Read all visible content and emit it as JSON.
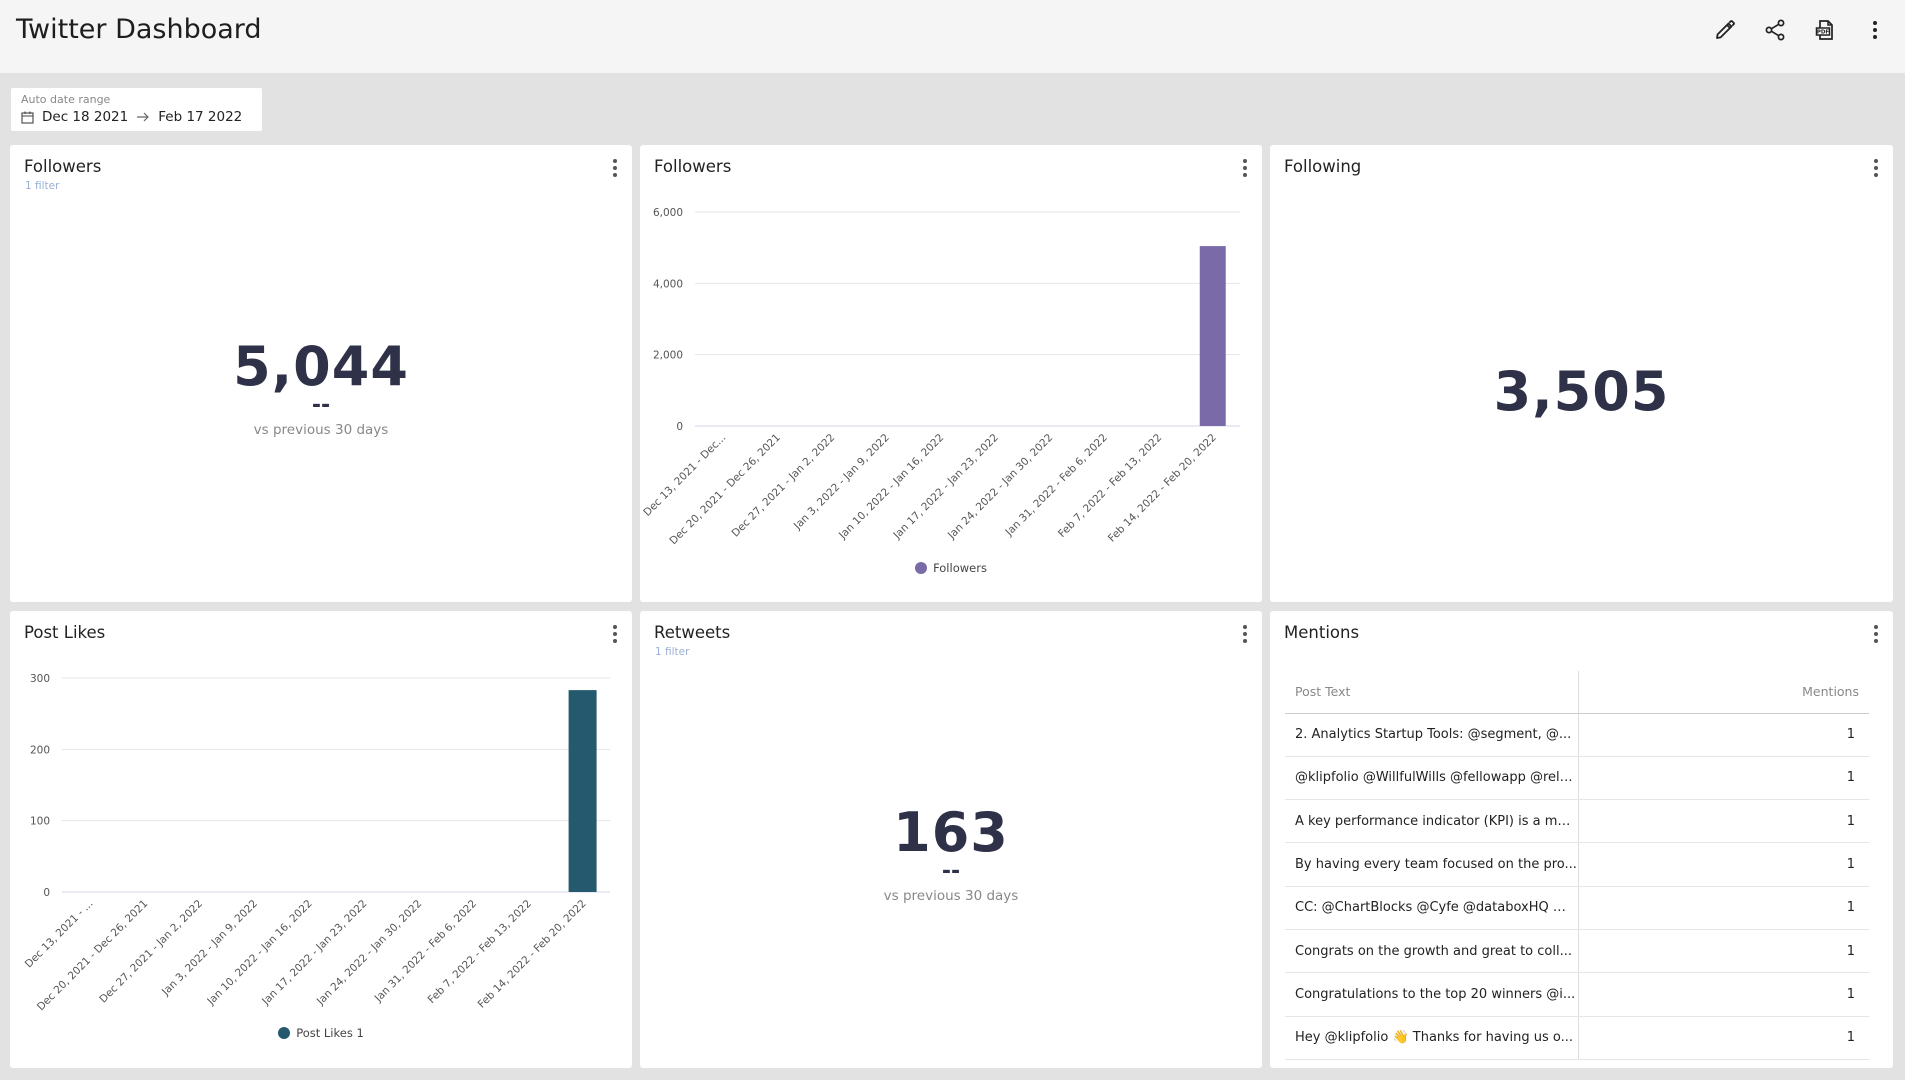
{
  "header": {
    "title": "Twitter Dashboard",
    "actions": [
      {
        "name": "edit-icon"
      },
      {
        "name": "share-icon"
      },
      {
        "name": "pdf-export-icon"
      },
      {
        "name": "more-vertical-icon"
      }
    ]
  },
  "date_range": {
    "label": "Auto date range",
    "start": "Dec 18 2021",
    "end": "Feb 17 2022"
  },
  "cards": {
    "followers_metric": {
      "title": "Followers",
      "filter": "1 filter",
      "value": "5,044",
      "delta": "--",
      "comparison": "vs previous 30 days"
    },
    "followers_chart": {
      "title": "Followers"
    },
    "following_metric": {
      "title": "Following",
      "value": "3,505"
    },
    "post_likes_chart": {
      "title": "Post Likes"
    },
    "retweets_metric": {
      "title": "Retweets",
      "filter": "1 filter",
      "value": "163",
      "delta": "--",
      "comparison": "vs previous 30 days"
    },
    "mentions_table": {
      "title": "Mentions",
      "columns": [
        "Post Text",
        "Mentions"
      ],
      "rows": [
        {
          "text": "2. Analytics Startup Tools: @segment, @...",
          "count": "1"
        },
        {
          "text": "@klipfolio @WillfulWills @fellowapp @relo...",
          "count": "1"
        },
        {
          "text": "A key performance indicator (KPI) is a me...",
          "count": "1"
        },
        {
          "text": "By having every team focused on the pro...",
          "count": "1"
        },
        {
          "text": "CC: @ChartBlocks @Cyfe @databoxHQ @...",
          "count": "1"
        },
        {
          "text": "Congrats on the growth and great to coll...",
          "count": "1"
        },
        {
          "text": "Congratulations to the top 20 winners @i...",
          "count": "1"
        },
        {
          "text": "Hey @klipfolio 👋 Thanks for having us o...",
          "count": "1"
        }
      ]
    }
  },
  "chart_data": [
    {
      "type": "bar",
      "title": "Followers",
      "categories": [
        "Dec 13, 2021 - Dec...",
        "Dec 20, 2021 - Dec 26, 2021",
        "Dec 27, 2021 - Jan 2, 2022",
        "Jan 3, 2022 - Jan 9, 2022",
        "Jan 10, 2022 - Jan 16, 2022",
        "Jan 17, 2022 - Jan 23, 2022",
        "Jan 24, 2022 - Jan 30, 2022",
        "Jan 31, 2022 - Feb 6, 2022",
        "Feb 7, 2022 - Feb 13, 2022",
        "Feb 14, 2022 - Feb 20, 2022"
      ],
      "series": [
        {
          "name": "Followers",
          "values": [
            0,
            0,
            0,
            0,
            0,
            0,
            0,
            0,
            0,
            5044
          ],
          "color": "#7a6ba8"
        }
      ],
      "yticks": [
        0,
        2000,
        4000,
        6000
      ],
      "ytick_labels": [
        "0",
        "2,000",
        "4,000",
        "6,000"
      ],
      "ylim": [
        0,
        6000
      ],
      "legend": "bottom",
      "grid": true
    },
    {
      "type": "bar",
      "title": "Post Likes",
      "categories": [
        "Dec 13, 2021 - ...",
        "Dec 20, 2021 - Dec 26, 2021",
        "Dec 27, 2021 - Jan 2, 2022",
        "Jan 3, 2022 - Jan 9, 2022",
        "Jan 10, 2022 - Jan 16, 2022",
        "Jan 17, 2022 - Jan 23, 2022",
        "Jan 24, 2022 - Jan 30, 2022",
        "Jan 31, 2022 - Feb 6, 2022",
        "Feb 7, 2022 - Feb 13, 2022",
        "Feb 14, 2022 - Feb 20, 2022"
      ],
      "series": [
        {
          "name": "Post Likes 1",
          "values": [
            0,
            0,
            0,
            0,
            0,
            0,
            0,
            0,
            0,
            283
          ],
          "color": "#255a6e"
        }
      ],
      "yticks": [
        0,
        100,
        200,
        300
      ],
      "ytick_labels": [
        "0",
        "100",
        "200",
        "300"
      ],
      "ylim": [
        0,
        300
      ],
      "legend": "bottom",
      "grid": true
    }
  ]
}
